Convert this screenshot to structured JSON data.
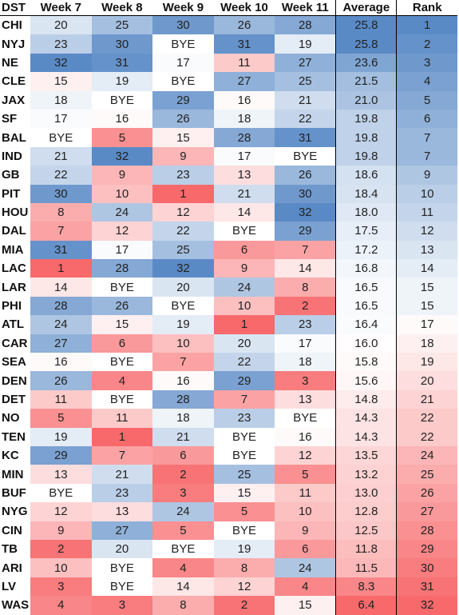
{
  "chart_data": {
    "type": "heatmap",
    "columns": [
      "DST",
      "Week 7",
      "Week 8",
      "Week 9",
      "Week 10",
      "Week 11",
      "Average",
      "Rank"
    ],
    "bye_label": "BYE",
    "color_scale": {
      "low": "#f8696b",
      "mid": "#ffffff",
      "high": "#5a8ac6"
    },
    "rows": [
      {
        "team": "CHI",
        "weeks": [
          20,
          25,
          30,
          26,
          28
        ],
        "average": "25.8",
        "rank": 1
      },
      {
        "team": "NYJ",
        "weeks": [
          23,
          30,
          "BYE",
          31,
          19
        ],
        "average": "25.8",
        "rank": 2
      },
      {
        "team": "NE",
        "weeks": [
          32,
          31,
          17,
          11,
          27
        ],
        "average": "23.6",
        "rank": 3
      },
      {
        "team": "CLE",
        "weeks": [
          15,
          19,
          "BYE",
          27,
          25
        ],
        "average": "21.5",
        "rank": 4
      },
      {
        "team": "JAX",
        "weeks": [
          18,
          "BYE",
          29,
          16,
          21
        ],
        "average": "21.0",
        "rank": 5
      },
      {
        "team": "SF",
        "weeks": [
          17,
          16,
          26,
          18,
          22
        ],
        "average": "19.8",
        "rank": 6
      },
      {
        "team": "BAL",
        "weeks": [
          "BYE",
          5,
          15,
          28,
          31
        ],
        "average": "19.8",
        "rank": 7
      },
      {
        "team": "IND",
        "weeks": [
          21,
          32,
          9,
          17,
          "BYE"
        ],
        "average": "19.8",
        "rank": 7
      },
      {
        "team": "GB",
        "weeks": [
          22,
          9,
          23,
          13,
          26
        ],
        "average": "18.6",
        "rank": 9
      },
      {
        "team": "PIT",
        "weeks": [
          30,
          10,
          1,
          21,
          30
        ],
        "average": "18.4",
        "rank": 10
      },
      {
        "team": "HOU",
        "weeks": [
          8,
          24,
          12,
          14,
          32
        ],
        "average": "18.0",
        "rank": 11
      },
      {
        "team": "DAL",
        "weeks": [
          7,
          12,
          22,
          "BYE",
          29
        ],
        "average": "17.5",
        "rank": 12
      },
      {
        "team": "MIA",
        "weeks": [
          31,
          17,
          25,
          6,
          7
        ],
        "average": "17.2",
        "rank": 13
      },
      {
        "team": "LAC",
        "weeks": [
          1,
          28,
          32,
          9,
          14
        ],
        "average": "16.8",
        "rank": 14
      },
      {
        "team": "LAR",
        "weeks": [
          14,
          "BYE",
          20,
          24,
          8
        ],
        "average": "16.5",
        "rank": 15
      },
      {
        "team": "PHI",
        "weeks": [
          28,
          26,
          "BYE",
          10,
          2
        ],
        "average": "16.5",
        "rank": 15
      },
      {
        "team": "ATL",
        "weeks": [
          24,
          15,
          19,
          1,
          23
        ],
        "average": "16.4",
        "rank": 17
      },
      {
        "team": "CAR",
        "weeks": [
          27,
          6,
          10,
          20,
          17
        ],
        "average": "16.0",
        "rank": 18
      },
      {
        "team": "SEA",
        "weeks": [
          16,
          "BYE",
          7,
          22,
          18
        ],
        "average": "15.8",
        "rank": 19
      },
      {
        "team": "DEN",
        "weeks": [
          26,
          4,
          16,
          29,
          3
        ],
        "average": "15.6",
        "rank": 20
      },
      {
        "team": "DET",
        "weeks": [
          11,
          "BYE",
          28,
          7,
          13
        ],
        "average": "14.8",
        "rank": 21
      },
      {
        "team": "NO",
        "weeks": [
          5,
          11,
          18,
          23,
          "BYE"
        ],
        "average": "14.3",
        "rank": 22
      },
      {
        "team": "TEN",
        "weeks": [
          19,
          1,
          21,
          "BYE",
          16
        ],
        "average": "14.3",
        "rank": 22
      },
      {
        "team": "KC",
        "weeks": [
          29,
          7,
          6,
          "BYE",
          12
        ],
        "average": "13.5",
        "rank": 24
      },
      {
        "team": "MIN",
        "weeks": [
          13,
          21,
          2,
          25,
          5
        ],
        "average": "13.2",
        "rank": 25
      },
      {
        "team": "BUF",
        "weeks": [
          "BYE",
          23,
          3,
          15,
          11
        ],
        "average": "13.0",
        "rank": 26
      },
      {
        "team": "NYG",
        "weeks": [
          12,
          13,
          24,
          5,
          10
        ],
        "average": "12.8",
        "rank": 27
      },
      {
        "team": "CIN",
        "weeks": [
          9,
          27,
          5,
          "BYE",
          9
        ],
        "average": "12.5",
        "rank": 28
      },
      {
        "team": "TB",
        "weeks": [
          2,
          20,
          "BYE",
          19,
          6
        ],
        "average": "11.8",
        "rank": 29
      },
      {
        "team": "ARI",
        "weeks": [
          10,
          "BYE",
          4,
          8,
          24
        ],
        "average": "11.5",
        "rank": 30
      },
      {
        "team": "LV",
        "weeks": [
          3,
          "BYE",
          14,
          12,
          4
        ],
        "average": "8.3",
        "rank": 31
      },
      {
        "team": "WAS",
        "weeks": [
          4,
          3,
          8,
          2,
          15
        ],
        "average": "6.4",
        "rank": 32
      }
    ]
  }
}
